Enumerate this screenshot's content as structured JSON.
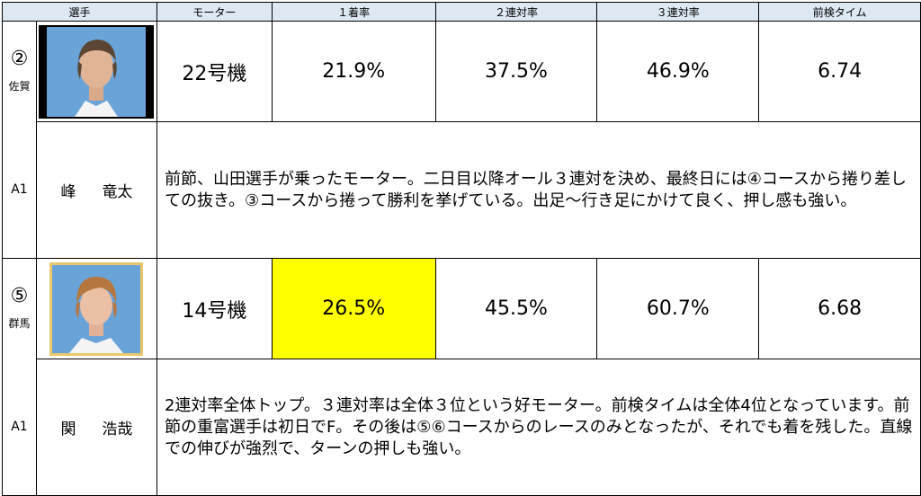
{
  "header": {
    "col1": "選手",
    "col2": "モーター",
    "col3": "１着率",
    "col4": "２連対率",
    "col5": "３連対率",
    "col6": "前検タイム"
  },
  "racers": [
    {
      "number": "②",
      "prefecture": "佐賀",
      "class": "A1",
      "name_family": "峰",
      "name_given": "竜太",
      "motor": "22号機",
      "win_rate": "21.9%",
      "two_rate": "37.5%",
      "three_rate": "46.9%",
      "time": "6.74",
      "comment": "前節、山田選手が乗ったモーター。二日目以降オール３連対を決め、最終日には④コースから捲り差しての抜き。③コースから捲って勝利を挙げている。出足～行き足にかけて良く、押し感も強い。",
      "highlight": "none"
    },
    {
      "number": "⑤",
      "prefecture": "群馬",
      "class": "A1",
      "name_family": "関",
      "name_given": "浩哉",
      "motor": "14号機",
      "win_rate": "26.5%",
      "two_rate": "45.5%",
      "three_rate": "60.7%",
      "time": "6.68",
      "comment": "2連対率全体トップ。３連対率は全体３位という好モーター。前検タイムは全体4位となっています。前節の重富選手は初日でF。その後は⑤⑥コースからのレースのみとなったが、それでも着を残した。直線での伸びが強烈で、ターンの押しも強い。",
      "highlight": "win_rate"
    }
  ],
  "colors": {
    "header_bg": "#dde8f3",
    "highlight": "#ffff00",
    "photo_bg": "#6aa3d8",
    "photo_frame_dark": "#000000",
    "photo_frame_light": "#e8c86a"
  }
}
